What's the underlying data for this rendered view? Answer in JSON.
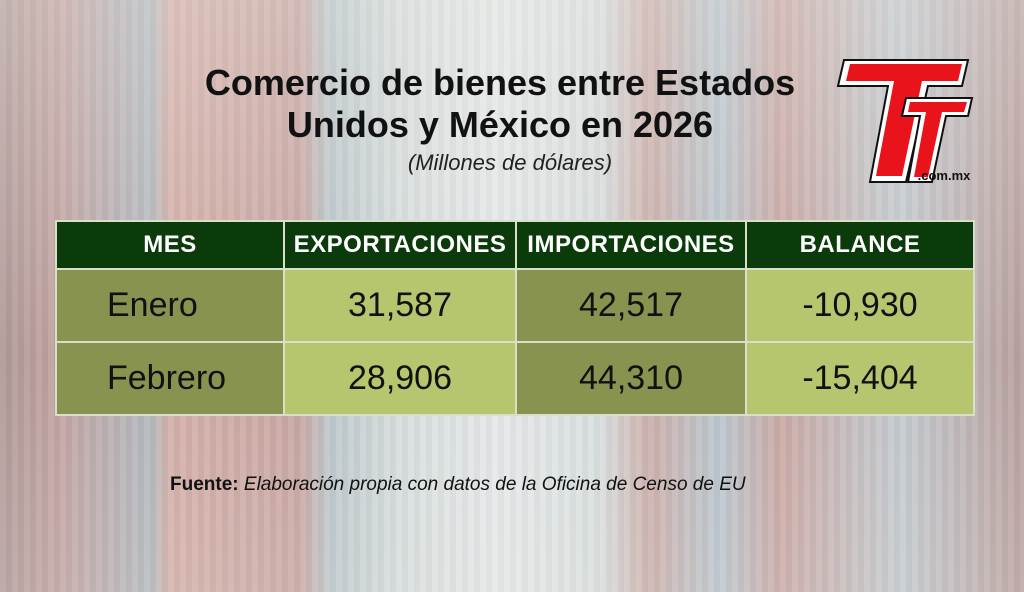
{
  "title": "Comercio de bienes entre Estados Unidos y México en 2026",
  "subtitle": "(Millones de dólares)",
  "logo": {
    "text": "TyT",
    "domain": ".com.mx",
    "color": "#e8131b"
  },
  "chart_data": {
    "type": "table",
    "title": "Comercio de bienes entre Estados Unidos y México en 2026",
    "subtitle": "(Millones de dólares)",
    "columns": [
      "MES",
      "EXPORTACIONES",
      "IMPORTACIONES",
      "BALANCE"
    ],
    "rows": [
      [
        "Enero",
        "31,587",
        "42,517",
        "-10,930"
      ],
      [
        "Febrero",
        "28,906",
        "44,310",
        "-15,404"
      ]
    ],
    "values": {
      "Enero": {
        "exportaciones": 31587,
        "importaciones": 42517,
        "balance": -10930
      },
      "Febrero": {
        "exportaciones": 28906,
        "importaciones": 44310,
        "balance": -15404
      }
    }
  },
  "source": {
    "label": "Fuente:",
    "text": "Elaboración propia con datos de la Oficina de Censo de EU"
  },
  "colors": {
    "header": "#0b3a0b",
    "light_cell": "#b6c66f",
    "dark_cell": "#88934f"
  }
}
